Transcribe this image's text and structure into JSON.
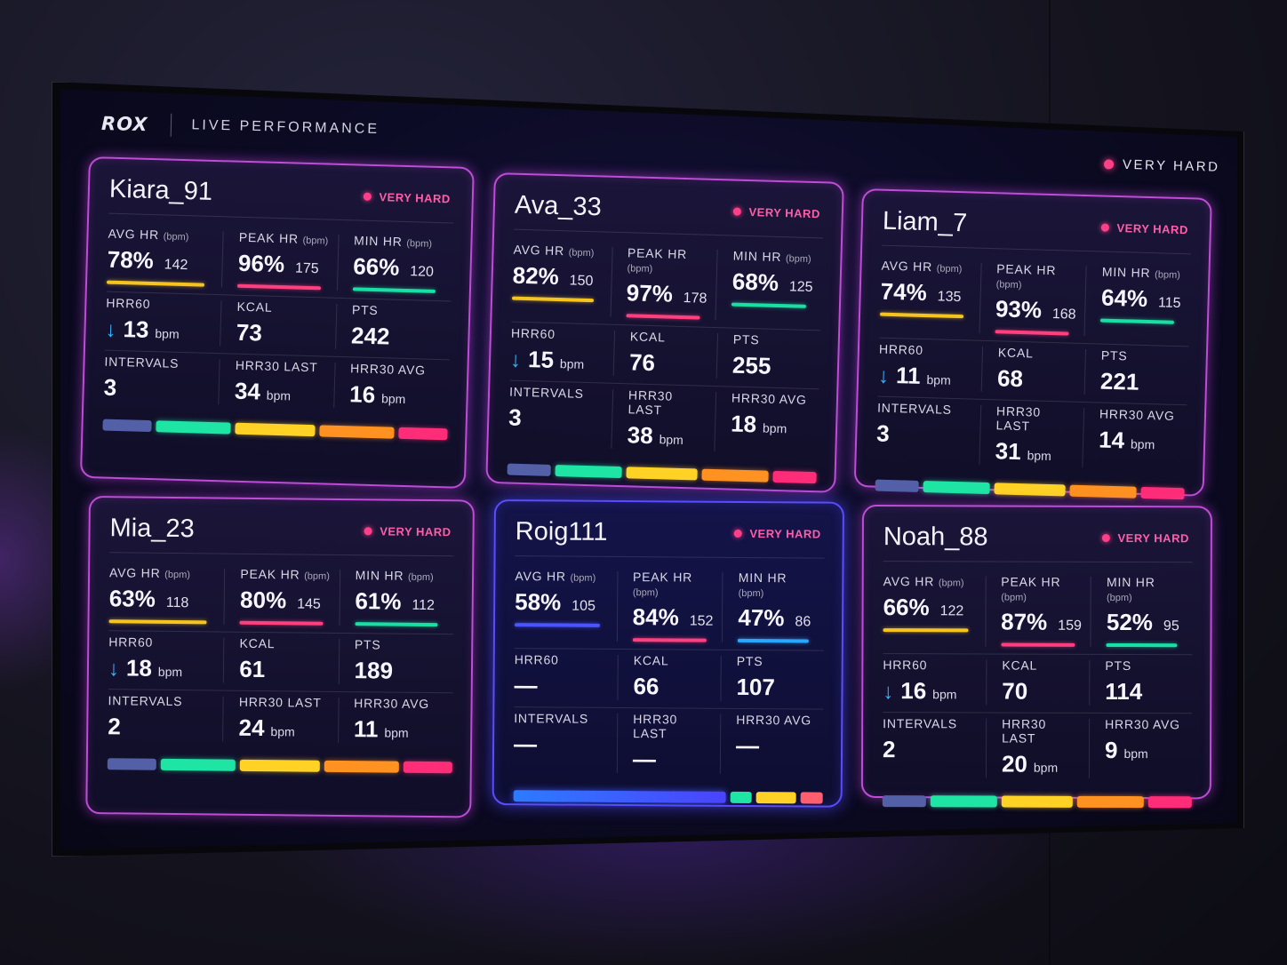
{
  "header": {
    "logo": "ROX",
    "title": "LIVE PERFORMANCE",
    "status": "VERY HARD"
  },
  "labels": {
    "avg_hr": "AVG HR",
    "peak_hr": "PEAK HR",
    "min_hr": "MIN HR",
    "bpm_paren": "(bpm)",
    "hrr60": "HRR60",
    "kcal": "KCAL",
    "pts": "PTS",
    "intervals": "INTERVALS",
    "hrr30_last": "HRR30 LAST",
    "hrr30_avg": "HRR30 AVG",
    "bpm": "bpm",
    "arrow": "↓",
    "dash": "—"
  },
  "colors": {
    "card_border": "#c04cd8",
    "card_border_active": "#5a4dff",
    "status_dot": "#ff3f87",
    "zone1": "#5360a8",
    "zone2": "#1ee4a4",
    "zone3": "#ffd225",
    "zone4": "#ff9220",
    "zone5": "#ff2d78"
  },
  "cards": [
    {
      "name": "Kiara_91",
      "status": "VERY HARD",
      "avg_pct": "78%",
      "avg_bpm": "142",
      "peak_pct": "96%",
      "peak_bpm": "175",
      "min_pct": "66%",
      "min_bpm": "120",
      "hrr60": "13",
      "kcal": "73",
      "pts": "242",
      "intervals": "3",
      "hrr30_last": "34",
      "hrr30_avg": "16"
    },
    {
      "name": "Ava_33",
      "status": "VERY HARD",
      "avg_pct": "82%",
      "avg_bpm": "150",
      "peak_pct": "97%",
      "peak_bpm": "178",
      "min_pct": "68%",
      "min_bpm": "125",
      "hrr60": "15",
      "kcal": "76",
      "pts": "255",
      "intervals": "3",
      "hrr30_last": "38",
      "hrr30_avg": "18"
    },
    {
      "name": "Liam_7",
      "status": "VERY HARD",
      "avg_pct": "74%",
      "avg_bpm": "135",
      "peak_pct": "93%",
      "peak_bpm": "168",
      "min_pct": "64%",
      "min_bpm": "115",
      "hrr60": "11",
      "kcal": "68",
      "pts": "221",
      "intervals": "3",
      "hrr30_last": "31",
      "hrr30_avg": "14"
    },
    {
      "name": "Mia_23",
      "status": "VERY HARD",
      "avg_pct": "63%",
      "avg_bpm": "118",
      "peak_pct": "80%",
      "peak_bpm": "145",
      "min_pct": "61%",
      "min_bpm": "112",
      "hrr60": "18",
      "kcal": "61",
      "pts": "189",
      "intervals": "2",
      "hrr30_last": "24",
      "hrr30_avg": "11"
    },
    {
      "name": "Roig111",
      "status": "VERY HARD",
      "avg_pct": "58%",
      "avg_bpm": "105",
      "peak_pct": "84%",
      "peak_bpm": "152",
      "min_pct": "47%",
      "min_bpm": "86",
      "hrr60": "—",
      "kcal": "66",
      "pts": "107",
      "intervals": "—",
      "hrr30_last": "—",
      "hrr30_avg": "—"
    },
    {
      "name": "Noah_88",
      "status": "VERY HARD",
      "avg_pct": "66%",
      "avg_bpm": "122",
      "peak_pct": "87%",
      "peak_bpm": "159",
      "min_pct": "52%",
      "min_bpm": "95",
      "hrr60": "16",
      "kcal": "70",
      "pts": "114",
      "intervals": "2",
      "hrr30_last": "20",
      "hrr30_avg": "9"
    }
  ]
}
